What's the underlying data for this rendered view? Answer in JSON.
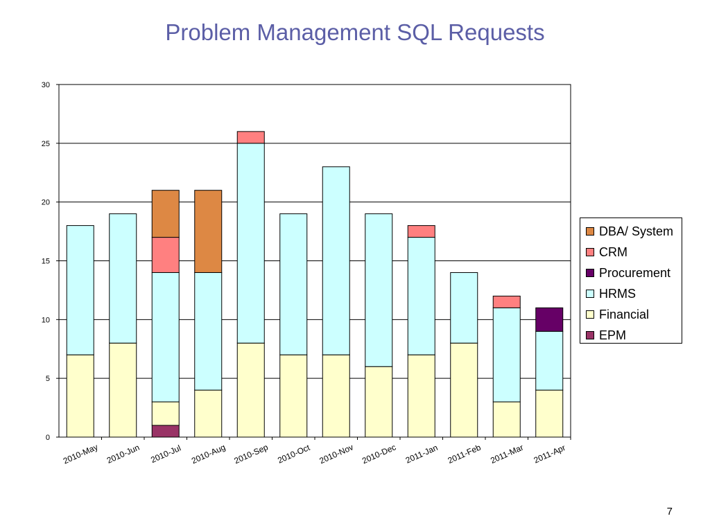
{
  "slide": {
    "title": "Problem Management SQL Requests",
    "page_number": "7"
  },
  "chart_data": {
    "type": "bar",
    "stacked": true,
    "title": "",
    "xlabel": "",
    "ylabel": "",
    "ylim": [
      0,
      30
    ],
    "yticks": [
      0,
      5,
      10,
      15,
      20,
      25,
      30
    ],
    "grid": true,
    "legend_position": "right",
    "categories": [
      "2010-May",
      "2010-Jun",
      "2010-Jul",
      "2010-Aug",
      "2010-Sep",
      "2010-Oct",
      "2010-Nov",
      "2010-Dec",
      "2011-Jan",
      "2011-Feb",
      "2011-Mar",
      "2011-Apr"
    ],
    "series": [
      {
        "name": "EPM",
        "color": "#993366",
        "values": [
          0,
          0,
          1,
          0,
          0,
          0,
          0,
          0,
          0,
          0,
          0,
          0
        ]
      },
      {
        "name": "Financial",
        "color": "#ffffcc",
        "values": [
          7,
          8,
          2,
          4,
          8,
          7,
          7,
          6,
          7,
          8,
          3,
          4
        ]
      },
      {
        "name": "HRMS",
        "color": "#ccffff",
        "values": [
          11,
          11,
          11,
          10,
          17,
          12,
          16,
          13,
          10,
          6,
          8,
          5
        ]
      },
      {
        "name": "Procurement",
        "color": "#660066",
        "values": [
          0,
          0,
          0,
          0,
          0,
          0,
          0,
          0,
          0,
          0,
          0,
          2
        ]
      },
      {
        "name": "CRM",
        "color": "#ff8080",
        "values": [
          0,
          0,
          3,
          0,
          1,
          0,
          0,
          0,
          1,
          0,
          1,
          0
        ]
      },
      {
        "name": "DBA/ System",
        "color": "#dd8844",
        "values": [
          0,
          0,
          4,
          7,
          0,
          0,
          0,
          0,
          0,
          0,
          0,
          0
        ]
      }
    ],
    "legend_order": [
      "DBA/ System",
      "CRM",
      "Procurement",
      "HRMS",
      "Financial",
      "EPM"
    ]
  }
}
